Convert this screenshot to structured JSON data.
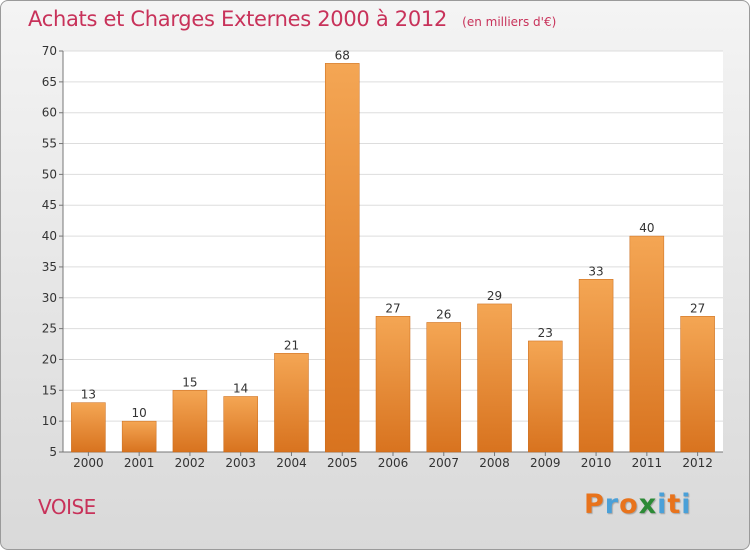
{
  "header": {
    "title": "Achats et Charges Externes 2000 à 2012",
    "unit": "(en milliers d'€)"
  },
  "footer": {
    "commune": "VOISE",
    "logo": "Proxiti"
  },
  "colors": {
    "title": "#c8325a",
    "bar_top": "#f4a654",
    "bar_bottom": "#d8731f",
    "logo_letters": [
      "#e8731c",
      "#4aa0d8",
      "#e8731c",
      "#2c8a36",
      "#4aa0d8",
      "#e8731c",
      "#4aa0d8"
    ]
  },
  "chart_data": {
    "type": "bar",
    "title": "Achats et Charges Externes 2000 à 2012",
    "subtitle": "(en milliers d'€)",
    "categories": [
      "2000",
      "2001",
      "2002",
      "2003",
      "2004",
      "2005",
      "2006",
      "2007",
      "2008",
      "2009",
      "2010",
      "2011",
      "2012"
    ],
    "values": [
      13,
      10,
      15,
      14,
      21,
      68,
      27,
      26,
      29,
      23,
      33,
      40,
      27
    ],
    "ylim": [
      5,
      70
    ],
    "yticks": [
      5,
      10,
      15,
      20,
      25,
      30,
      35,
      40,
      45,
      50,
      55,
      60,
      65,
      70
    ],
    "grid": true,
    "data_labels": true
  }
}
